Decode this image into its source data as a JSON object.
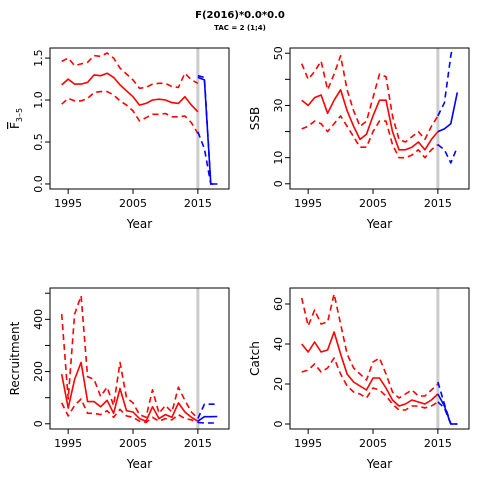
{
  "title": "F(2016)*0.0*0.0",
  "subtitle": "TAC = 2 (1;4)",
  "colors": {
    "historic": "#ff0000",
    "projection": "#0000ff",
    "ref_line": "#cccccc",
    "axis": "#000000"
  },
  "chart_data": [
    {
      "type": "line",
      "xlabel": "Year",
      "ylabel": "F",
      "ylabel_sub": "3–5",
      "xlim": [
        1992.2,
        2019.8
      ],
      "ylim": [
        -0.06,
        1.62
      ],
      "xticks": [
        1995,
        2005,
        2015
      ],
      "yticks": [
        0.0,
        0.5,
        1.0,
        1.5
      ],
      "ytick_labels": [
        "0.0",
        "0.5",
        "1.0",
        "1.5"
      ],
      "vline": 2015,
      "grid": false,
      "series": [
        {
          "role": "historic",
          "style": "solid",
          "x": [
            1994,
            1995,
            1996,
            1997,
            1998,
            1999,
            2000,
            2001,
            2002,
            2003,
            2004,
            2005,
            2006,
            2007,
            2008,
            2009,
            2010,
            2011,
            2012,
            2013,
            2014,
            2015
          ],
          "y": [
            1.18,
            1.25,
            1.19,
            1.19,
            1.21,
            1.3,
            1.29,
            1.32,
            1.27,
            1.18,
            1.11,
            1.04,
            0.94,
            0.96,
            1.0,
            1.01,
            1.0,
            0.97,
            0.96,
            1.04,
            0.94,
            0.86
          ]
        },
        {
          "role": "historic",
          "style": "dashed",
          "x": [
            1994,
            1995,
            1996,
            1997,
            1998,
            1999,
            2000,
            2001,
            2002,
            2003,
            2004,
            2005,
            2006,
            2007,
            2008,
            2009,
            2010,
            2011,
            2012,
            2013,
            2014,
            2015
          ],
          "y": [
            1.46,
            1.5,
            1.41,
            1.43,
            1.45,
            1.53,
            1.52,
            1.56,
            1.5,
            1.38,
            1.31,
            1.24,
            1.14,
            1.15,
            1.19,
            1.2,
            1.2,
            1.16,
            1.15,
            1.32,
            1.24,
            1.2
          ]
        },
        {
          "role": "historic",
          "style": "dashed",
          "x": [
            1994,
            1995,
            1996,
            1997,
            1998,
            1999,
            2000,
            2001,
            2002,
            2003,
            2004,
            2005,
            2006,
            2007,
            2008,
            2009,
            2010,
            2011,
            2012,
            2013,
            2014,
            2015
          ],
          "y": [
            0.95,
            1.02,
            0.99,
            0.99,
            1.02,
            1.09,
            1.1,
            1.1,
            1.06,
            0.99,
            0.94,
            0.87,
            0.75,
            0.79,
            0.83,
            0.83,
            0.84,
            0.8,
            0.8,
            0.81,
            0.73,
            0.6
          ]
        },
        {
          "role": "projection",
          "style": "solid",
          "x": [
            2015,
            2016,
            2017,
            2018
          ],
          "y": [
            1.27,
            1.24,
            0.0,
            0.0
          ]
        },
        {
          "role": "projection",
          "style": "dashed",
          "x": [
            2015,
            2016,
            2017,
            2018
          ],
          "y": [
            1.29,
            1.27,
            0.0,
            0.0
          ]
        },
        {
          "role": "projection",
          "style": "dashed",
          "x": [
            2015,
            2016,
            2017,
            2018
          ],
          "y": [
            0.62,
            0.42,
            0.0,
            0.0
          ]
        }
      ]
    },
    {
      "type": "line",
      "xlabel": "Year",
      "ylabel": "SSB",
      "xlim": [
        1992.2,
        2019.8
      ],
      "ylim": [
        -2,
        52
      ],
      "xticks": [
        1995,
        2005,
        2015
      ],
      "yticks": [
        0,
        10,
        20,
        30,
        40,
        50
      ],
      "ytick_labels": [
        "0",
        "10",
        "",
        "30",
        "",
        "50"
      ],
      "vline": 2015,
      "grid": false,
      "series": [
        {
          "role": "historic",
          "style": "solid",
          "x": [
            1994,
            1995,
            1996,
            1997,
            1998,
            1999,
            2000,
            2001,
            2002,
            2003,
            2004,
            2005,
            2006,
            2007,
            2008,
            2009,
            2010,
            2011,
            2012,
            2013,
            2014,
            2015
          ],
          "y": [
            32,
            30,
            33,
            34,
            27,
            32,
            36,
            28,
            22,
            17,
            19,
            26,
            32,
            32,
            20,
            13,
            13,
            14,
            16,
            13,
            17,
            20
          ]
        },
        {
          "role": "historic",
          "style": "dashed",
          "x": [
            1994,
            1995,
            1996,
            1997,
            1998,
            1999,
            2000,
            2001,
            2002,
            2003,
            2004,
            2005,
            2006,
            2007,
            2008,
            2009,
            2010,
            2011,
            2012,
            2013,
            2014,
            2015
          ],
          "y": [
            46,
            40,
            43,
            47,
            36,
            42,
            49,
            36,
            28,
            22,
            24,
            33,
            42,
            41,
            26,
            17,
            16,
            18,
            20,
            17,
            22,
            26
          ]
        },
        {
          "role": "historic",
          "style": "dashed",
          "x": [
            1994,
            1995,
            1996,
            1997,
            1998,
            1999,
            2000,
            2001,
            2002,
            2003,
            2004,
            2005,
            2006,
            2007,
            2008,
            2009,
            2010,
            2011,
            2012,
            2013,
            2014,
            2015
          ],
          "y": [
            21,
            22,
            24,
            23,
            20,
            23,
            26,
            22,
            18,
            14,
            14,
            20,
            24,
            24,
            15,
            10,
            10,
            11,
            13,
            10,
            13,
            15
          ]
        },
        {
          "role": "projection",
          "style": "solid",
          "x": [
            2015,
            2016,
            2017,
            2018
          ],
          "y": [
            20,
            21,
            23,
            35
          ]
        },
        {
          "role": "projection",
          "style": "dashed",
          "x": [
            2015,
            2016,
            2017,
            2018
          ],
          "y": [
            26,
            31,
            49,
            62
          ]
        },
        {
          "role": "projection",
          "style": "dashed",
          "x": [
            2015,
            2016,
            2017,
            2018
          ],
          "y": [
            15,
            13,
            8,
            14
          ]
        }
      ]
    },
    {
      "type": "line",
      "xlabel": "Year",
      "ylabel": "Recruitment",
      "xlim": [
        1992.2,
        2019.8
      ],
      "ylim": [
        -20,
        520
      ],
      "xticks": [
        1995,
        2005,
        2015
      ],
      "yticks": [
        0,
        100,
        200,
        300,
        400,
        500
      ],
      "ytick_labels": [
        "0",
        "",
        "200",
        "",
        "400",
        ""
      ],
      "vline": 2015,
      "grid": false,
      "series": [
        {
          "role": "historic",
          "style": "solid",
          "x": [
            1994,
            1995,
            1996,
            1997,
            1998,
            1999,
            2000,
            2001,
            2002,
            2003,
            2004,
            2005,
            2006,
            2007,
            2008,
            2009,
            2010,
            2011,
            2012,
            2013,
            2014,
            2015
          ],
          "y": [
            190,
            60,
            170,
            235,
            85,
            85,
            65,
            90,
            40,
            135,
            50,
            45,
            20,
            10,
            65,
            20,
            35,
            25,
            80,
            45,
            25,
            10
          ]
        },
        {
          "role": "historic",
          "style": "dashed",
          "x": [
            1994,
            1995,
            1996,
            1997,
            1998,
            1999,
            2000,
            2001,
            2002,
            2003,
            2004,
            2005,
            2006,
            2007,
            2008,
            2009,
            2010,
            2011,
            2012,
            2013,
            2014,
            2015
          ],
          "y": [
            420,
            95,
            420,
            490,
            180,
            170,
            105,
            140,
            70,
            235,
            100,
            80,
            35,
            25,
            130,
            40,
            70,
            45,
            140,
            90,
            45,
            20
          ]
        },
        {
          "role": "historic",
          "style": "dashed",
          "x": [
            1994,
            1995,
            1996,
            1997,
            1998,
            1999,
            2000,
            2001,
            2002,
            2003,
            2004,
            2005,
            2006,
            2007,
            2008,
            2009,
            2010,
            2011,
            2012,
            2013,
            2014,
            2015
          ],
          "y": [
            80,
            30,
            70,
            95,
            40,
            40,
            35,
            50,
            25,
            55,
            30,
            25,
            10,
            5,
            25,
            10,
            20,
            15,
            35,
            20,
            15,
            5
          ]
        },
        {
          "role": "projection",
          "style": "solid",
          "x": [
            2015,
            2016,
            2017,
            2018
          ],
          "y": [
            10,
            27,
            27,
            28
          ]
        },
        {
          "role": "projection",
          "style": "dashed",
          "x": [
            2015,
            2016,
            2017,
            2018
          ],
          "y": [
            20,
            75,
            75,
            75
          ]
        },
        {
          "role": "projection",
          "style": "dashed",
          "x": [
            2015,
            2016,
            2017,
            2018
          ],
          "y": [
            5,
            3,
            3,
            3
          ]
        }
      ]
    },
    {
      "type": "line",
      "xlabel": "Year",
      "ylabel": "Catch",
      "xlim": [
        1992.2,
        2019.8
      ],
      "ylim": [
        -2.5,
        68
      ],
      "xticks": [
        1995,
        2005,
        2015
      ],
      "yticks": [
        0,
        20,
        40,
        60
      ],
      "ytick_labels": [
        "0",
        "20",
        "40",
        "60"
      ],
      "vline": 2015,
      "grid": false,
      "series": [
        {
          "role": "historic",
          "style": "solid",
          "x": [
            1994,
            1995,
            1996,
            1997,
            1998,
            1999,
            2000,
            2001,
            2002,
            2003,
            2004,
            2005,
            2006,
            2007,
            2008,
            2009,
            2010,
            2011,
            2012,
            2013,
            2014,
            2015
          ],
          "y": [
            40,
            36,
            41,
            36,
            37,
            46,
            35,
            25,
            21,
            19,
            17,
            23,
            23,
            18,
            12,
            9,
            10,
            12,
            11,
            10,
            12,
            15
          ]
        },
        {
          "role": "historic",
          "style": "dashed",
          "x": [
            1994,
            1995,
            1996,
            1997,
            1998,
            1999,
            2000,
            2001,
            2002,
            2003,
            2004,
            2005,
            2006,
            2007,
            2008,
            2009,
            2010,
            2011,
            2012,
            2013,
            2014,
            2015
          ],
          "y": [
            63,
            49,
            57,
            50,
            51,
            65,
            50,
            35,
            28,
            25,
            22,
            31,
            33,
            25,
            16,
            13,
            15,
            17,
            14,
            14,
            17,
            20
          ]
        },
        {
          "role": "historic",
          "style": "dashed",
          "x": [
            1994,
            1995,
            1996,
            1997,
            1998,
            1999,
            2000,
            2001,
            2002,
            2003,
            2004,
            2005,
            2006,
            2007,
            2008,
            2009,
            2010,
            2011,
            2012,
            2013,
            2014,
            2015
          ],
          "y": [
            26,
            27,
            30,
            26,
            28,
            33,
            25,
            19,
            16,
            15,
            13,
            18,
            17,
            14,
            10,
            7,
            7,
            9,
            9,
            8,
            9,
            11
          ]
        },
        {
          "role": "projection",
          "style": "solid",
          "x": [
            2015,
            2016,
            2017,
            2018
          ],
          "y": [
            15,
            9,
            0,
            0
          ]
        },
        {
          "role": "projection",
          "style": "dashed",
          "x": [
            2015,
            2016,
            2017,
            2018
          ],
          "y": [
            21,
            10,
            0,
            0
          ]
        },
        {
          "role": "projection",
          "style": "dashed",
          "x": [
            2015,
            2016,
            2017,
            2018
          ],
          "y": [
            11,
            8,
            0,
            0
          ]
        }
      ]
    }
  ]
}
